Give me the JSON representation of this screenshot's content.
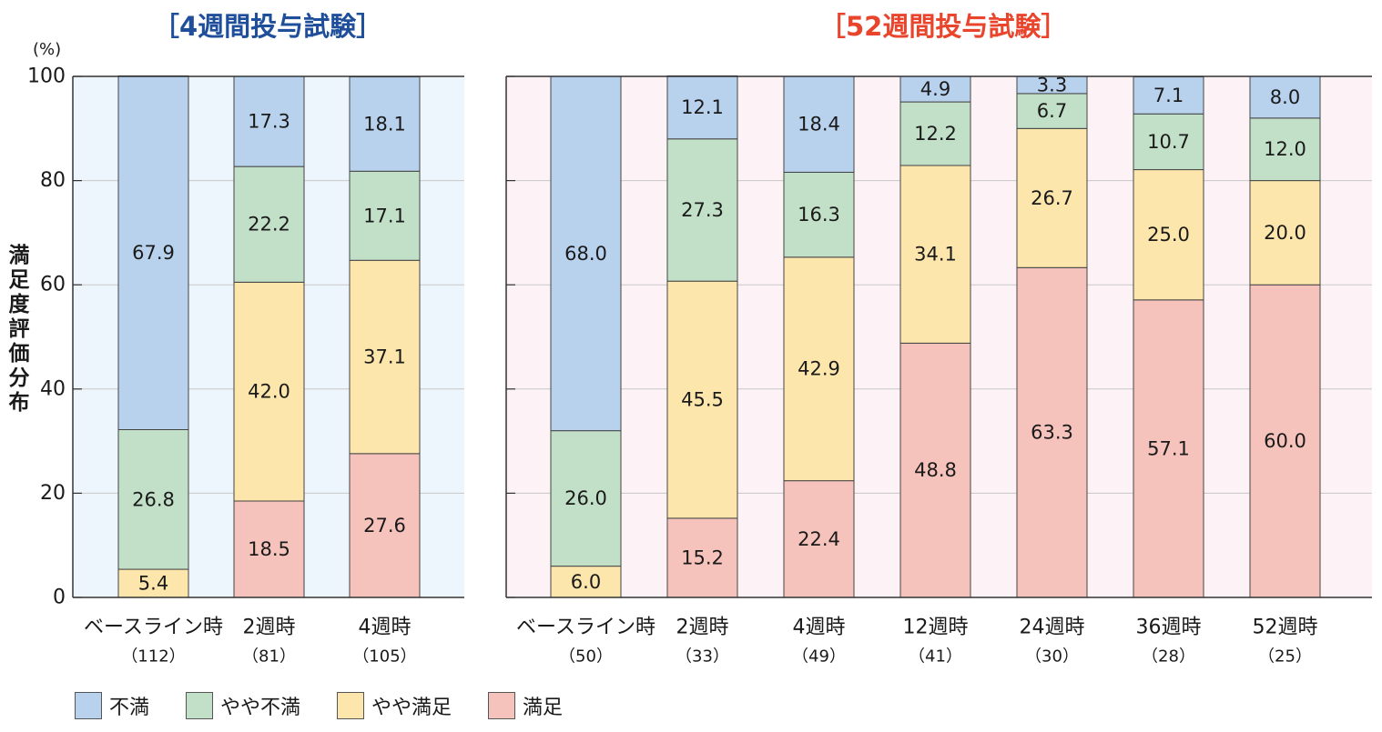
{
  "titles": {
    "left": "［4週間投与試験］",
    "right": "［52週間投与試験］",
    "left_color": "#1f4e9b",
    "right_color": "#e8452c"
  },
  "y_axis": {
    "label": "満足度評価分布",
    "unit": "(%)",
    "ticks": [
      "0",
      "20",
      "40",
      "60",
      "80",
      "100"
    ]
  },
  "legend": [
    {
      "name": "不満",
      "color": "#b8d2ee"
    },
    {
      "name": "やや不満",
      "color": "#c2e0c8"
    },
    {
      "name": "やや満足",
      "color": "#fde6ab"
    },
    {
      "name": "満足",
      "color": "#f5c3bb"
    }
  ],
  "panel_bg": {
    "left": "#edf5fd",
    "right": "#fdf2f5"
  },
  "chart_data": [
    {
      "type": "bar",
      "stacked": true,
      "title": "［4週間投与試験］",
      "ylabel": "満足度評価分布",
      "ylim": [
        0,
        100
      ],
      "grid": true,
      "categories": [
        "ベースライン時",
        "2週時",
        "4週時"
      ],
      "n": [
        "（112）",
        "（81）",
        "（105）"
      ],
      "series": [
        {
          "name": "満足",
          "values": [
            null,
            18.5,
            27.6
          ]
        },
        {
          "name": "やや満足",
          "values": [
            5.4,
            42.0,
            37.1
          ]
        },
        {
          "name": "やや不満",
          "values": [
            26.8,
            22.2,
            17.1
          ]
        },
        {
          "name": "不満",
          "values": [
            67.9,
            17.3,
            18.1
          ]
        }
      ]
    },
    {
      "type": "bar",
      "stacked": true,
      "title": "［52週間投与試験］",
      "ylim": [
        0,
        100
      ],
      "grid": true,
      "categories": [
        "ベースライン時",
        "2週時",
        "4週時",
        "12週時",
        "24週時",
        "36週時",
        "52週時"
      ],
      "n": [
        "（50）",
        "（33）",
        "（49）",
        "（41）",
        "（30）",
        "（28）",
        "（25）"
      ],
      "series": [
        {
          "name": "満足",
          "values": [
            null,
            15.2,
            22.4,
            48.8,
            63.3,
            57.1,
            60.0
          ]
        },
        {
          "name": "やや満足",
          "values": [
            6.0,
            45.5,
            42.9,
            34.1,
            26.7,
            25.0,
            20.0
          ]
        },
        {
          "name": "やや不満",
          "values": [
            26.0,
            27.3,
            16.3,
            12.2,
            6.7,
            10.7,
            12.0
          ]
        },
        {
          "name": "不満",
          "values": [
            68.0,
            12.1,
            18.4,
            4.9,
            3.3,
            7.1,
            8.0
          ]
        }
      ]
    }
  ]
}
